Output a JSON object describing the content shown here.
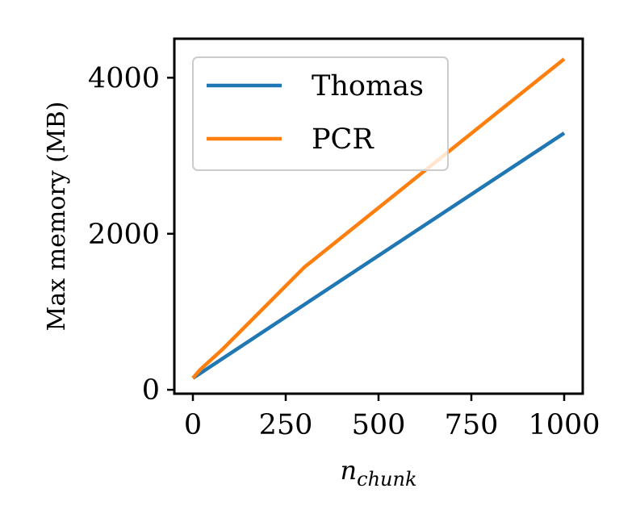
{
  "chart_data": {
    "type": "line",
    "title": "",
    "xlabel": "n",
    "xlabel_subscript": "chunk",
    "ylabel": "Max memory (MB)",
    "xlim": [
      -50,
      1050
    ],
    "ylim": [
      -50,
      4500
    ],
    "xticks": [
      0,
      250,
      500,
      750,
      1000
    ],
    "xtick_labels": [
      "0",
      "250",
      "500",
      "750",
      "1000"
    ],
    "yticks": [
      0,
      2000,
      4000
    ],
    "ytick_labels": [
      "0",
      "2000",
      "4000"
    ],
    "grid": false,
    "legend_position": "upper-left",
    "series": [
      {
        "name": "Thomas",
        "color": "#1f77b4",
        "x": [
          0,
          1000
        ],
        "y": [
          150,
          3290
        ]
      },
      {
        "name": "PCR",
        "color": "#ff7f0e",
        "x": [
          0,
          20,
          80,
          300,
          1000
        ],
        "y": [
          150,
          260,
          520,
          1570,
          4240
        ]
      }
    ]
  }
}
